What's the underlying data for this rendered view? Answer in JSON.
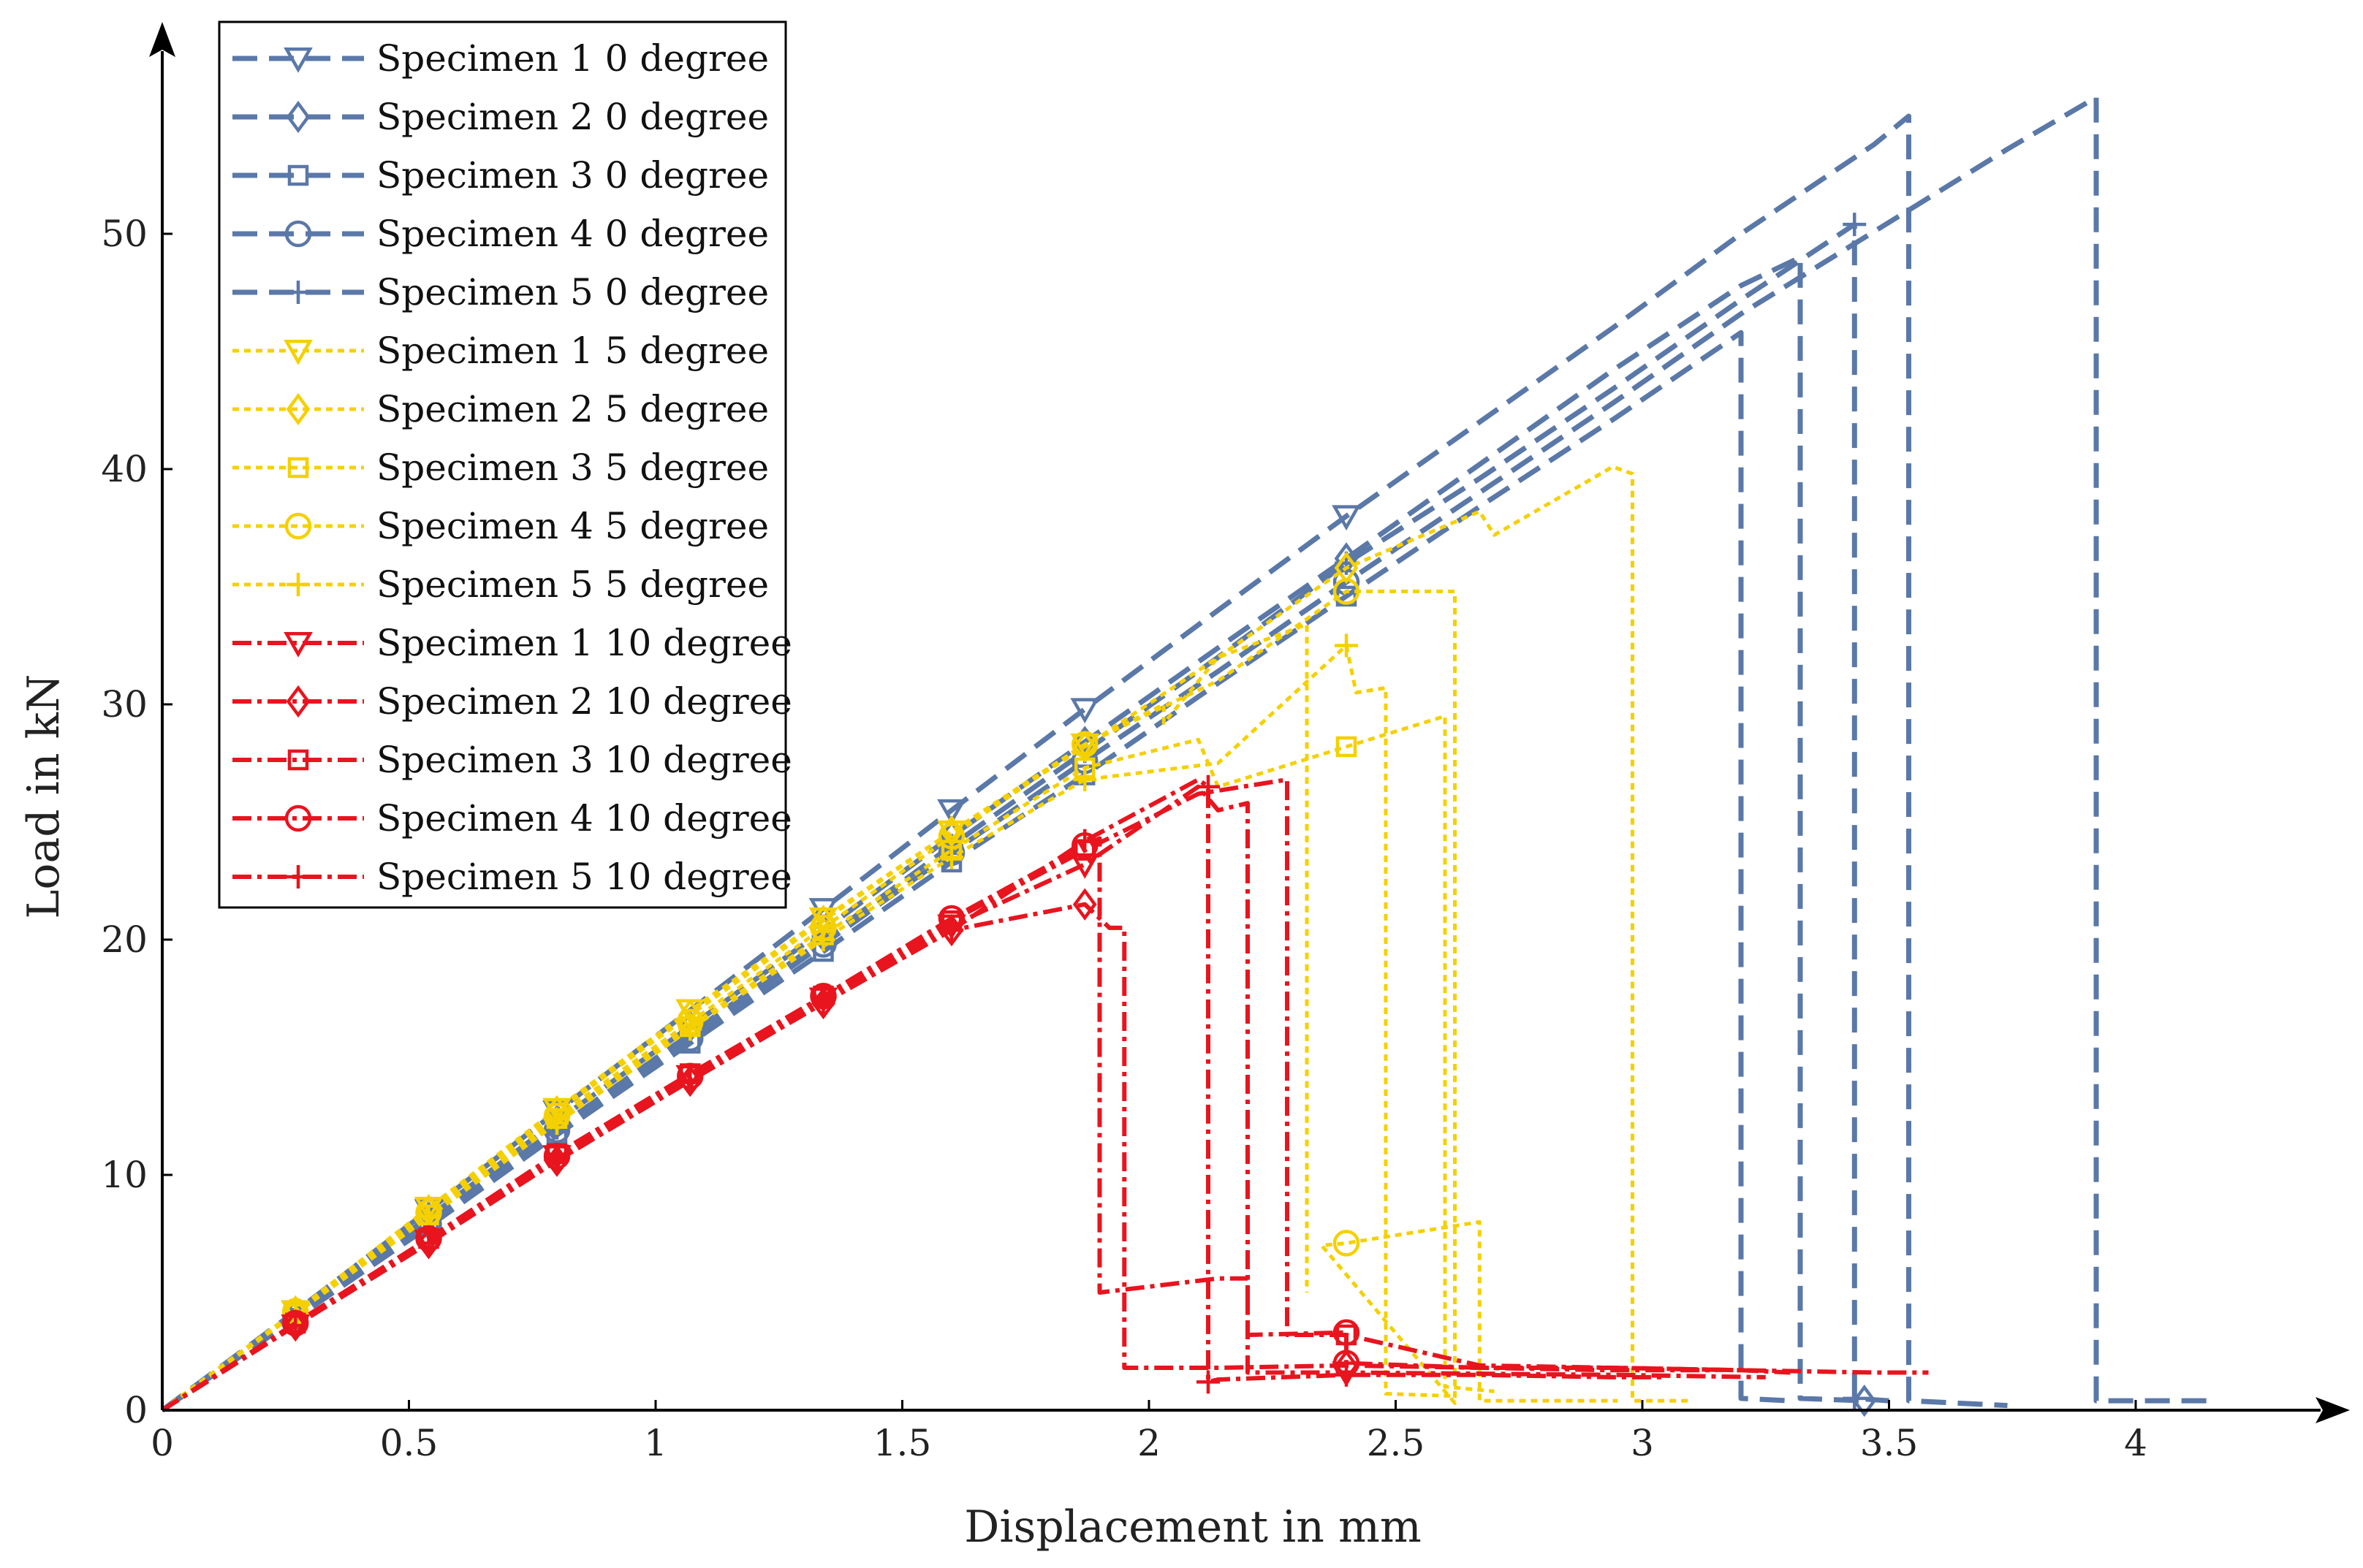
{
  "chart_data": {
    "type": "line",
    "title": "",
    "xlabel": "Displacement in mm",
    "ylabel": "Load in kN",
    "xlim": [
      0,
      4.3
    ],
    "ylim": [
      0,
      56
    ],
    "xticks": [
      0,
      0.5,
      1,
      1.5,
      2,
      2.5,
      3,
      3.5,
      4
    ],
    "xtick_labels": [
      "0",
      "0.5",
      "1",
      "1.5",
      "2",
      "2.5",
      "3",
      "3.5",
      "4"
    ],
    "yticks": [
      0,
      10,
      20,
      30,
      40,
      50
    ],
    "ytick_labels": [
      "0",
      "10",
      "20",
      "30",
      "40",
      "50"
    ],
    "grid": false,
    "legend_position": "top-left",
    "colors": {
      "deg0": "#5a78a8",
      "deg5": "#f5d000",
      "deg10": "#e8141e",
      "axis": "#000000"
    },
    "series": [
      {
        "name": "Specimen 1 0 degree",
        "group": "deg0",
        "marker": "triangle-down",
        "points": [
          [
            0,
            0
          ],
          [
            0.27,
            4.2
          ],
          [
            0.54,
            8.5
          ],
          [
            0.8,
            12.7
          ],
          [
            1.07,
            17
          ],
          [
            1.34,
            21.3
          ],
          [
            1.6,
            25.5
          ],
          [
            1.87,
            29.8
          ],
          [
            2.14,
            34
          ],
          [
            2.4,
            38
          ],
          [
            2.67,
            42
          ],
          [
            2.94,
            46
          ],
          [
            3.2,
            50
          ],
          [
            3.47,
            53.8
          ],
          [
            3.54,
            55
          ],
          [
            3.54,
            0.4
          ],
          [
            3.74,
            0.2
          ]
        ]
      },
      {
        "name": "Specimen 2 0 degree",
        "group": "deg0",
        "marker": "diamond",
        "points": [
          [
            0,
            0
          ],
          [
            0.27,
            4.1
          ],
          [
            0.54,
            8.2
          ],
          [
            0.8,
            12.3
          ],
          [
            1.07,
            16.3
          ],
          [
            1.34,
            20.4
          ],
          [
            1.6,
            24.4
          ],
          [
            1.87,
            28.4
          ],
          [
            2.14,
            32.4
          ],
          [
            2.4,
            36.2
          ],
          [
            2.67,
            40.2
          ],
          [
            2.94,
            44.2
          ],
          [
            3.2,
            47.8
          ],
          [
            3.32,
            49
          ],
          [
            3.32,
            0.5
          ],
          [
            3.45,
            0.4
          ]
        ]
      },
      {
        "name": "Specimen 3 0 degree",
        "group": "deg0",
        "marker": "square",
        "points": [
          [
            0,
            0
          ],
          [
            0.27,
            3.9
          ],
          [
            0.54,
            7.8
          ],
          [
            0.8,
            11.7
          ],
          [
            1.07,
            15.6
          ],
          [
            1.34,
            19.5
          ],
          [
            1.6,
            23.3
          ],
          [
            1.87,
            27
          ],
          [
            2.14,
            30.9
          ],
          [
            2.4,
            34.6
          ],
          [
            2.67,
            38.4
          ],
          [
            2.94,
            42.1
          ],
          [
            3.2,
            45.8
          ],
          [
            3.2,
            0.5
          ],
          [
            3.3,
            0.4
          ]
        ]
      },
      {
        "name": "Specimen 4 0 degree",
        "group": "deg0",
        "marker": "circle",
        "points": [
          [
            0,
            0
          ],
          [
            0.27,
            4
          ],
          [
            0.54,
            7.9
          ],
          [
            0.8,
            11.9
          ],
          [
            1.07,
            15.8
          ],
          [
            1.34,
            19.8
          ],
          [
            1.6,
            23.7
          ],
          [
            1.87,
            27.6
          ],
          [
            2.14,
            31.4
          ],
          [
            2.4,
            35.2
          ],
          [
            2.67,
            39
          ],
          [
            2.94,
            42.8
          ],
          [
            3.2,
            46.6
          ],
          [
            3.47,
            50.1
          ],
          [
            3.74,
            53.6
          ],
          [
            3.92,
            55.8
          ],
          [
            3.92,
            0.4
          ],
          [
            4.15,
            0.4
          ]
        ]
      },
      {
        "name": "Specimen 5 0 degree",
        "group": "deg0",
        "marker": "plus",
        "points": [
          [
            0,
            0
          ],
          [
            0.27,
            4
          ],
          [
            0.54,
            8
          ],
          [
            0.8,
            12
          ],
          [
            1.07,
            16
          ],
          [
            1.34,
            20
          ],
          [
            1.6,
            24
          ],
          [
            1.87,
            28
          ],
          [
            2.14,
            32
          ],
          [
            2.4,
            36
          ],
          [
            2.67,
            39.6
          ],
          [
            2.94,
            43.4
          ],
          [
            3.2,
            47.2
          ],
          [
            3.43,
            50.4
          ],
          [
            3.43,
            0.5
          ],
          [
            3.5,
            0.4
          ]
        ]
      },
      {
        "name": "Specimen 1 5 degree",
        "group": "deg5",
        "marker": "triangle-down",
        "points": [
          [
            0,
            0
          ],
          [
            0.27,
            4.2
          ],
          [
            0.54,
            8.6
          ],
          [
            0.8,
            12.8
          ],
          [
            1.07,
            17
          ],
          [
            1.34,
            20.9
          ],
          [
            1.6,
            24.6
          ],
          [
            1.87,
            28.3
          ],
          [
            2.03,
            30
          ],
          [
            2.03,
            29.2
          ],
          [
            2.14,
            32
          ],
          [
            2.32,
            33.4
          ],
          [
            2.32,
            5
          ]
        ]
      },
      {
        "name": "Specimen 2 5 degree",
        "group": "deg5",
        "marker": "diamond",
        "points": [
          [
            0,
            0
          ],
          [
            0.27,
            4.2
          ],
          [
            0.54,
            8.5
          ],
          [
            0.8,
            12.7
          ],
          [
            1.07,
            16.8
          ],
          [
            1.34,
            20.8
          ],
          [
            1.6,
            24.6
          ],
          [
            1.87,
            28.2
          ],
          [
            2.14,
            32
          ],
          [
            2.4,
            35.8
          ],
          [
            2.67,
            38.2
          ],
          [
            2.7,
            37.2
          ],
          [
            2.94,
            40.1
          ],
          [
            2.98,
            39.8
          ],
          [
            2.98,
            0.4
          ],
          [
            3.1,
            0.4
          ]
        ]
      },
      {
        "name": "Specimen 3 5 degree",
        "group": "deg5",
        "marker": "square",
        "points": [
          [
            0,
            0
          ],
          [
            0.27,
            4.1
          ],
          [
            0.54,
            8.3
          ],
          [
            0.8,
            12.4
          ],
          [
            1.07,
            16.3
          ],
          [
            1.34,
            20.2
          ],
          [
            1.6,
            23.8
          ],
          [
            1.87,
            27.3
          ],
          [
            2.1,
            28.5
          ],
          [
            2.14,
            26.5
          ],
          [
            2.4,
            28.2
          ],
          [
            2.6,
            29.5
          ],
          [
            2.6,
            1
          ],
          [
            2.7,
            0.8
          ]
        ]
      },
      {
        "name": "Specimen 4 5 degree",
        "group": "deg5",
        "marker": "circle",
        "points": [
          [
            0,
            0
          ],
          [
            0.27,
            4.2
          ],
          [
            0.54,
            8.4
          ],
          [
            0.8,
            12.5
          ],
          [
            1.07,
            16.5
          ],
          [
            1.34,
            20.5
          ],
          [
            1.6,
            24.4
          ],
          [
            1.87,
            28.3
          ],
          [
            2.14,
            31
          ],
          [
            2.4,
            34.8
          ],
          [
            2.62,
            34.8
          ],
          [
            2.62,
            0.3
          ],
          [
            2.35,
            7
          ],
          [
            2.4,
            7.1
          ],
          [
            2.67,
            8
          ],
          [
            2.67,
            0.4
          ],
          [
            2.95,
            0.4
          ]
        ]
      },
      {
        "name": "Specimen 5 5 degree",
        "group": "deg5",
        "marker": "plus",
        "points": [
          [
            0,
            0
          ],
          [
            0.27,
            4.1
          ],
          [
            0.54,
            8.2
          ],
          [
            0.8,
            12.2
          ],
          [
            1.07,
            16.2
          ],
          [
            1.34,
            20
          ],
          [
            1.6,
            23.5
          ],
          [
            1.87,
            26.8
          ],
          [
            2.14,
            27.5
          ],
          [
            2.4,
            32.5
          ],
          [
            2.42,
            30.5
          ],
          [
            2.48,
            30.7
          ],
          [
            2.48,
            0.7
          ],
          [
            2.62,
            0.6
          ]
        ]
      },
      {
        "name": "Specimen 1 10 degree",
        "group": "deg10",
        "marker": "triangle-down",
        "points": [
          [
            0,
            0
          ],
          [
            0.27,
            3.6
          ],
          [
            0.54,
            7.2
          ],
          [
            0.8,
            10.8
          ],
          [
            1.07,
            14.2
          ],
          [
            1.34,
            17.5
          ],
          [
            1.6,
            20.6
          ],
          [
            1.87,
            23.2
          ],
          [
            2.1,
            26.5
          ],
          [
            2.14,
            25.5
          ],
          [
            2.2,
            25.8
          ],
          [
            2.2,
            1.6
          ],
          [
            2.4,
            1.6
          ],
          [
            2.94,
            1.5
          ],
          [
            3.25,
            1.4
          ]
        ]
      },
      {
        "name": "Specimen 2 10 degree",
        "group": "deg10",
        "marker": "diamond",
        "points": [
          [
            0,
            0
          ],
          [
            0.27,
            3.6
          ],
          [
            0.54,
            7.1
          ],
          [
            0.8,
            10.6
          ],
          [
            1.07,
            14
          ],
          [
            1.34,
            17.3
          ],
          [
            1.6,
            20.4
          ],
          [
            1.87,
            21.5
          ],
          [
            1.92,
            20.5
          ],
          [
            1.95,
            20.5
          ],
          [
            1.95,
            1.8
          ],
          [
            2.14,
            1.8
          ],
          [
            2.4,
            1.9
          ],
          [
            2.67,
            1.8
          ],
          [
            2.94,
            1.7
          ],
          [
            3.15,
            1.7
          ]
        ]
      },
      {
        "name": "Specimen 3 10 degree",
        "group": "deg10",
        "marker": "square",
        "points": [
          [
            0,
            0
          ],
          [
            0.27,
            3.7
          ],
          [
            0.54,
            7.3
          ],
          [
            0.8,
            10.9
          ],
          [
            1.07,
            14.3
          ],
          [
            1.34,
            17.6
          ],
          [
            1.6,
            20.8
          ],
          [
            1.87,
            23.8
          ],
          [
            2.1,
            26.2
          ],
          [
            2.28,
            26.8
          ],
          [
            2.28,
            3.2
          ],
          [
            2.4,
            3.2
          ],
          [
            2.67,
            1.9
          ],
          [
            2.94,
            1.8
          ],
          [
            3.2,
            1.7
          ],
          [
            3.47,
            1.6
          ],
          [
            3.58,
            1.6
          ]
        ]
      },
      {
        "name": "Specimen 4 10 degree",
        "group": "deg10",
        "marker": "circle",
        "points": [
          [
            0,
            0
          ],
          [
            0.27,
            3.7
          ],
          [
            0.54,
            7.3
          ],
          [
            0.8,
            10.8
          ],
          [
            1.07,
            14.2
          ],
          [
            1.34,
            17.6
          ],
          [
            1.6,
            20.9
          ],
          [
            1.87,
            24
          ],
          [
            1.9,
            24.3
          ],
          [
            1.9,
            5
          ],
          [
            2.14,
            5.6
          ],
          [
            2.2,
            5.6
          ],
          [
            2.2,
            3.2
          ],
          [
            2.4,
            3.3
          ],
          [
            2.4,
            2
          ],
          [
            2.67,
            1.8
          ],
          [
            2.94,
            1.8
          ],
          [
            3.2,
            1.7
          ],
          [
            3.3,
            1.6
          ]
        ]
      },
      {
        "name": "Specimen 5 10 degree",
        "group": "deg10",
        "marker": "plus",
        "points": [
          [
            0,
            0
          ],
          [
            0.27,
            3.6
          ],
          [
            0.54,
            7.1
          ],
          [
            0.8,
            10.6
          ],
          [
            1.07,
            14
          ],
          [
            1.34,
            17.3
          ],
          [
            1.6,
            20.4
          ],
          [
            1.87,
            24.2
          ],
          [
            2.1,
            26.8
          ],
          [
            2.12,
            26.5
          ],
          [
            2.12,
            1.2
          ],
          [
            2.14,
            1.3
          ],
          [
            2.4,
            1.5
          ],
          [
            2.67,
            1.5
          ],
          [
            2.94,
            1.4
          ],
          [
            3.05,
            1.4
          ]
        ]
      }
    ]
  }
}
